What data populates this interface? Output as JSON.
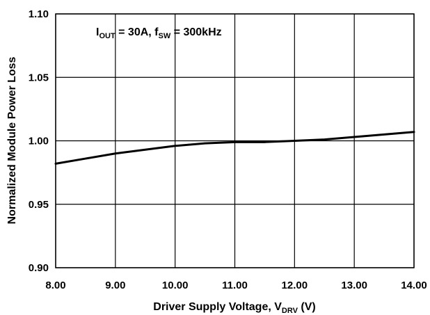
{
  "chart_data": {
    "type": "line",
    "xlabel": {
      "main": "Driver Supply Voltage, V",
      "sub": "DRV",
      "suffix": " (V)"
    },
    "ylabel": "Normalized Module Power Loss",
    "xlim": [
      8,
      14
    ],
    "ylim": [
      0.9,
      1.1
    ],
    "x_ticks": [
      8,
      9,
      10,
      11,
      12,
      13,
      14
    ],
    "y_ticks": [
      0.9,
      0.95,
      1.0,
      1.05,
      1.1
    ],
    "x_tick_labels": [
      "8.00",
      "9.00",
      "10.00",
      "11.00",
      "12.00",
      "13.00",
      "14.00"
    ],
    "y_tick_labels": [
      "0.90",
      "0.95",
      "1.00",
      "1.05",
      "1.10"
    ],
    "grid": true,
    "annotation": {
      "parts": [
        {
          "text": "I",
          "sub": false
        },
        {
          "text": "OUT",
          "sub": true
        },
        {
          "text": " = 30A, f",
          "sub": false
        },
        {
          "text": "SW",
          "sub": true
        },
        {
          "text": " = 300kHz",
          "sub": false
        }
      ]
    },
    "series": [
      {
        "color": "#000000",
        "x": [
          8.0,
          8.5,
          9.0,
          9.5,
          10.0,
          10.5,
          11.0,
          11.5,
          12.0,
          12.5,
          13.0,
          13.5,
          14.0
        ],
        "y": [
          0.982,
          0.986,
          0.99,
          0.993,
          0.996,
          0.998,
          0.999,
          0.999,
          1.0,
          1.001,
          1.003,
          1.005,
          1.007
        ]
      }
    ]
  }
}
